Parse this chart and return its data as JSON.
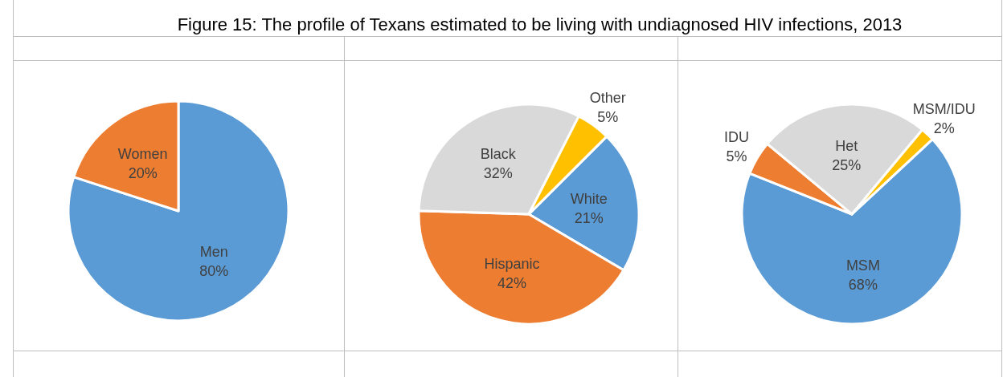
{
  "chart_data": [
    {
      "type": "pie",
      "title": "Figure 15: The profile of Texans estimated to be living with undiagnosed HIV infections, 2013",
      "categories": [
        "Men",
        "Women"
      ],
      "values": [
        80,
        20
      ],
      "value_labels": [
        "80%",
        "20%"
      ],
      "colors": [
        "#5b9bd5",
        "#ed7d31"
      ]
    },
    {
      "type": "pie",
      "categories": [
        "White",
        "Hispanic",
        "Black",
        "Other"
      ],
      "values": [
        21,
        42,
        32,
        5
      ],
      "value_labels": [
        "21%",
        "42%",
        "32%",
        "5%"
      ],
      "colors": [
        "#5b9bd5",
        "#ed7d31",
        "#d9d9d9",
        "#ffc000"
      ]
    },
    {
      "type": "pie",
      "categories": [
        "MSM",
        "IDU",
        "Het",
        "MSM/IDU"
      ],
      "values": [
        68,
        5,
        25,
        2
      ],
      "value_labels": [
        "68%",
        "5%",
        "25%",
        "2%"
      ],
      "colors": [
        "#5b9bd5",
        "#ed7d31",
        "#d9d9d9",
        "#ffc000"
      ]
    }
  ]
}
